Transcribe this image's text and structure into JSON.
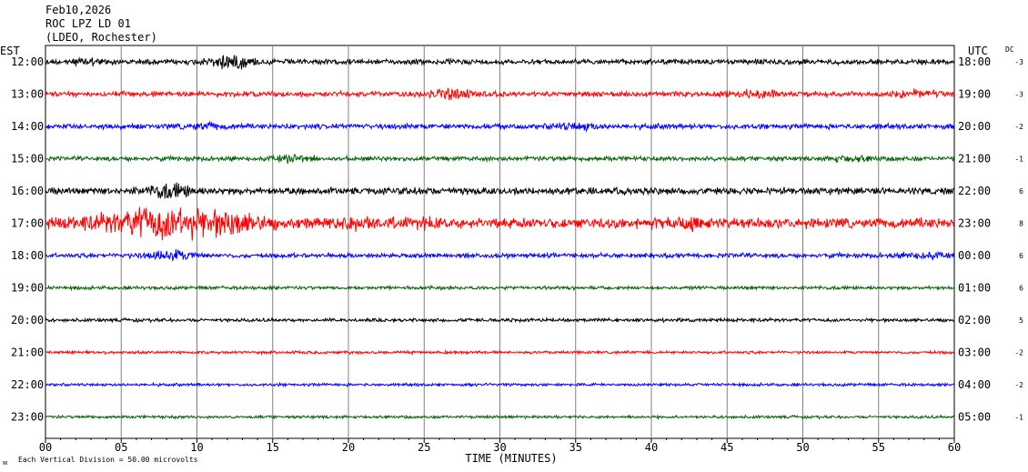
{
  "header": {
    "date": "Feb10,2026",
    "station": "ROC LPZ LD 01",
    "network": "(LDEO, Rochester)"
  },
  "chart_data": {
    "type": "line",
    "title": "ROC LPZ LD 01",
    "left_axis_label": "EST",
    "right_axis_label": "UTC",
    "dc_label": "DC",
    "xlabel": "TIME (MINUTES)",
    "x_ticks": [
      "00",
      "05",
      "10",
      "15",
      "20",
      "25",
      "30",
      "35",
      "40",
      "45",
      "50",
      "55",
      "60"
    ],
    "xlim": [
      0,
      60
    ],
    "grid": "vertical every 5 minutes",
    "footer": "Each Vertical Division =   50.00 microvolts",
    "trace_colors": [
      "#000000",
      "#ff0000",
      "#0000ff",
      "#006400"
    ],
    "rows": [
      {
        "est": "12:00",
        "utc": "18:00",
        "dc": "-3",
        "color": "#000000",
        "rel_amplitude": 0.45,
        "events": [
          {
            "minute": 12.2,
            "rel_amplitude": 1.6
          },
          {
            "minute": 2.8,
            "rel_amplitude": 0.9
          }
        ]
      },
      {
        "est": "13:00",
        "utc": "19:00",
        "dc": "-3",
        "color": "#ff0000",
        "rel_amplitude": 0.45,
        "events": [
          {
            "minute": 27.0,
            "rel_amplitude": 1.1
          },
          {
            "minute": 46.7,
            "rel_amplitude": 1.1
          },
          {
            "minute": 57.5,
            "rel_amplitude": 0.9
          }
        ]
      },
      {
        "est": "14:00",
        "utc": "20:00",
        "dc": "-2",
        "color": "#0000ff",
        "rel_amplitude": 0.45,
        "events": [
          {
            "minute": 35.0,
            "rel_amplitude": 0.9
          },
          {
            "minute": 10.5,
            "rel_amplitude": 0.8
          }
        ]
      },
      {
        "est": "15:00",
        "utc": "21:00",
        "dc": "-1",
        "color": "#006400",
        "rel_amplitude": 0.4,
        "events": [
          {
            "minute": 16.5,
            "rel_amplitude": 0.8
          },
          {
            "minute": 53.3,
            "rel_amplitude": 0.8
          }
        ]
      },
      {
        "est": "16:00",
        "utc": "22:00",
        "dc": "6",
        "color": "#000000",
        "rel_amplitude": 0.6,
        "events": [
          {
            "minute": 8.3,
            "rel_amplitude": 1.6
          }
        ]
      },
      {
        "est": "17:00",
        "utc": "23:00",
        "dc": "8",
        "color": "#ff0000",
        "rel_amplitude": 0.9,
        "events": [
          {
            "minute": 8.3,
            "rel_amplitude": 3.2
          },
          {
            "minute": 12.5,
            "rel_amplitude": 1.5
          },
          {
            "minute": 20.5,
            "rel_amplitude": 1.4
          },
          {
            "minute": 24.5,
            "rel_amplitude": 1.3
          },
          {
            "minute": 42.5,
            "rel_amplitude": 1.4
          }
        ]
      },
      {
        "est": "18:00",
        "utc": "00:00",
        "dc": "6",
        "color": "#0000ff",
        "rel_amplitude": 0.4,
        "events": [
          {
            "minute": 8.3,
            "rel_amplitude": 1.2
          },
          {
            "minute": 58.0,
            "rel_amplitude": 0.8
          }
        ]
      },
      {
        "est": "19:00",
        "utc": "01:00",
        "dc": "6",
        "color": "#006400",
        "rel_amplitude": 0.3,
        "events": []
      },
      {
        "est": "20:00",
        "utc": "02:00",
        "dc": "5",
        "color": "#000000",
        "rel_amplitude": 0.3,
        "events": []
      },
      {
        "est": "21:00",
        "utc": "03:00",
        "dc": "-2",
        "color": "#ff0000",
        "rel_amplitude": 0.25,
        "events": []
      },
      {
        "est": "22:00",
        "utc": "04:00",
        "dc": "-2",
        "color": "#0000ff",
        "rel_amplitude": 0.25,
        "events": []
      },
      {
        "est": "23:00",
        "utc": "05:00",
        "dc": "-1",
        "color": "#006400",
        "rel_amplitude": 0.25,
        "events": []
      }
    ]
  }
}
